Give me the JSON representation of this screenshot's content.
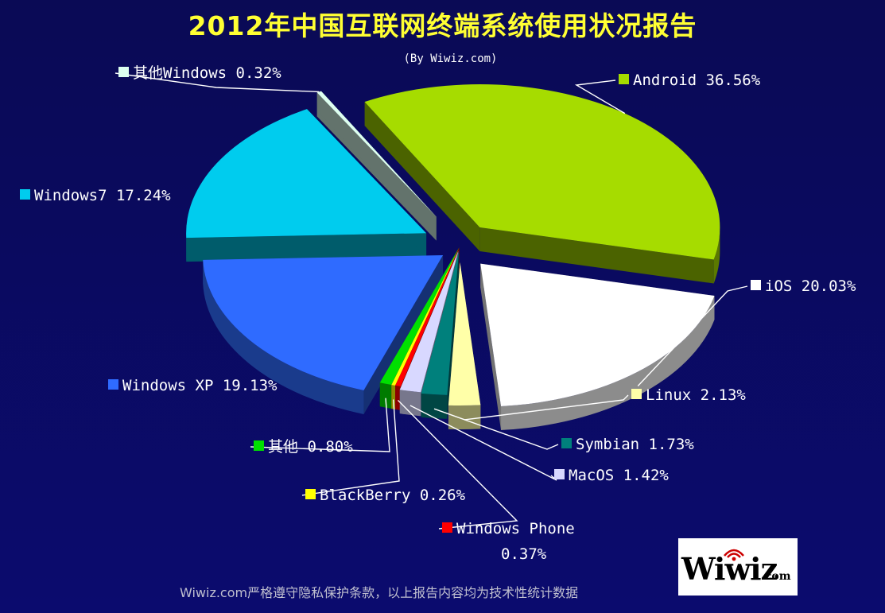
{
  "chart_data": {
    "type": "pie",
    "title": "2012年中国互联网终端系统使用状况报告",
    "subtitle": "(By Wiwiz.com)",
    "slices": [
      {
        "name": "Android",
        "value": 36.56,
        "label": "Android 36.56%",
        "color": "#a6dc00"
      },
      {
        "name": "iOS",
        "value": 20.03,
        "label": "iOS 20.03%",
        "color": "#ffffff"
      },
      {
        "name": "Linux",
        "value": 2.13,
        "label": "Linux 2.13%",
        "color": "#ffffa8"
      },
      {
        "name": "Symbian",
        "value": 1.73,
        "label": "Symbian 1.73%",
        "color": "#00807c"
      },
      {
        "name": "MacOS",
        "value": 1.42,
        "label": "MacOS 1.42%",
        "color": "#d8d8ff"
      },
      {
        "name": "Windows Phone",
        "value": 0.37,
        "label": "Windows Phone",
        "label2": "0.37%",
        "color": "#ff0000"
      },
      {
        "name": "BlackBerry",
        "value": 0.26,
        "label": "BlackBerry 0.26%",
        "color": "#ffff00"
      },
      {
        "name": "其他",
        "value": 0.8,
        "label": "其他 0.80%",
        "color": "#00e000"
      },
      {
        "name": "Windows XP",
        "value": 19.13,
        "label": "Windows XP 19.13%",
        "color": "#2f6bff"
      },
      {
        "name": "Windows7",
        "value": 17.24,
        "label": "Windows7 17.24%",
        "color": "#00ccee"
      },
      {
        "name": "其他Windows",
        "value": 0.32,
        "label": "其他Windows 0.32%",
        "color": "#ddfff0"
      }
    ]
  },
  "footer": "Wiwiz.com严格遵守隐私保护条款，以上报告内容均为技术性统计数据",
  "logo": {
    "main": "Wiwiz",
    "suffix": ".com"
  }
}
